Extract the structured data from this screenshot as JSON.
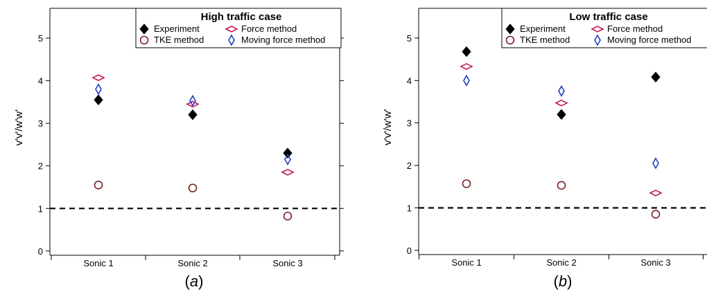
{
  "chart_data": [
    {
      "type": "scatter",
      "title": "High traffic case",
      "ylabel": " ̇v̇v/̇ẇw",
      "ylabel_text": "v'v'/w'w'",
      "caption_pre": "(",
      "caption_letter": "a",
      "caption_post": ")",
      "categories": [
        "Sonic 1",
        "Sonic 2",
        "Sonic 3"
      ],
      "yticks": [
        0,
        1,
        2,
        3,
        4,
        5
      ],
      "ylim": [
        -0.1,
        5.7
      ],
      "reference_line": 1.0,
      "series": [
        {
          "name": "Experiment",
          "marker": "filled-diamond",
          "color": "#000000",
          "values": [
            3.55,
            3.2,
            2.3
          ]
        },
        {
          "name": "TKE method",
          "marker": "circle",
          "color": "#7a1f1f",
          "values": [
            1.55,
            1.48,
            0.82
          ]
        },
        {
          "name": "Force method",
          "marker": "flat-diamond",
          "color": "#c2185b",
          "values": [
            4.07,
            3.45,
            1.85
          ]
        },
        {
          "name": "Moving force method",
          "marker": "tall-diamond",
          "color": "#1f3fbf",
          "values": [
            3.8,
            3.53,
            2.15
          ]
        }
      ]
    },
    {
      "type": "scatter",
      "title": "Low traffic case",
      "ylabel": " ̇v̇v/̇ẇw",
      "ylabel_text": "v'v'/w'w'",
      "caption_pre": "(",
      "caption_letter": "b",
      "caption_post": ")",
      "categories": [
        "Sonic 1",
        "Sonic 2",
        "Sonic 3"
      ],
      "yticks": [
        0,
        1,
        2,
        3,
        4,
        5
      ],
      "ylim": [
        -0.1,
        5.7
      ],
      "reference_line": 1.0,
      "series": [
        {
          "name": "Experiment",
          "marker": "filled-diamond",
          "color": "#000000",
          "values": [
            4.68,
            3.2,
            4.08
          ]
        },
        {
          "name": "TKE method",
          "marker": "circle",
          "color": "#7a1f1f",
          "values": [
            1.57,
            1.53,
            0.85
          ]
        },
        {
          "name": "Force method",
          "marker": "flat-diamond",
          "color": "#c2185b",
          "values": [
            4.33,
            3.47,
            1.35
          ]
        },
        {
          "name": "Moving force method",
          "marker": "tall-diamond",
          "color": "#1f3fbf",
          "values": [
            4.0,
            3.75,
            2.05
          ]
        }
      ]
    }
  ]
}
